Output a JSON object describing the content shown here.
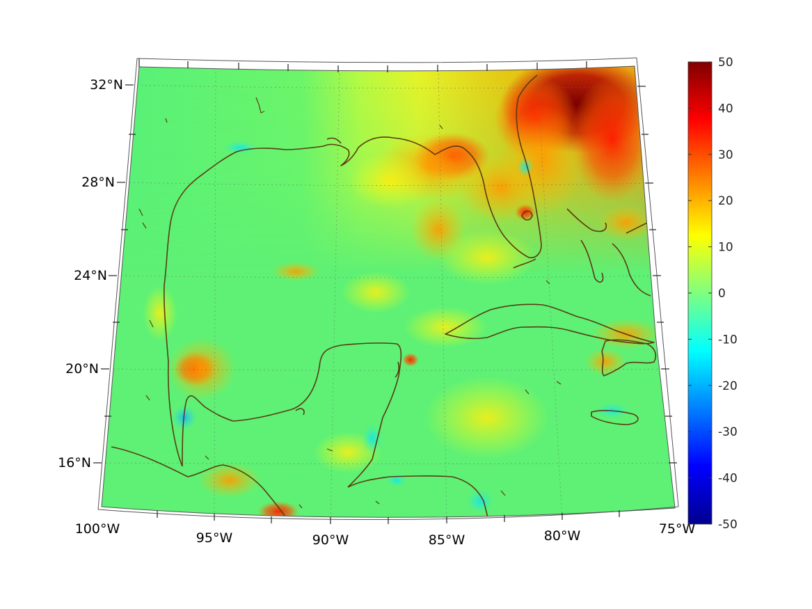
{
  "map": {
    "projection": "conic",
    "lon_range": [
      -100,
      -75
    ],
    "lat_range": [
      14,
      33
    ],
    "grid": true,
    "coastline_color": "#5a3a12",
    "lon_ticks": [
      {
        "lon": -100,
        "label": "100°W"
      },
      {
        "lon": -95,
        "label": "95°W"
      },
      {
        "lon": -90,
        "label": "90°W"
      },
      {
        "lon": -85,
        "label": "85°W"
      },
      {
        "lon": -80,
        "label": "80°W"
      },
      {
        "lon": -75,
        "label": "75°W"
      }
    ],
    "lat_ticks": [
      {
        "lat": 32,
        "label": "32°N"
      },
      {
        "lat": 28,
        "label": "28°N"
      },
      {
        "lat": 24,
        "label": "24°N"
      },
      {
        "lat": 20,
        "label": "20°N"
      },
      {
        "lat": 16,
        "label": "16°N"
      }
    ]
  },
  "colorbar": {
    "colormap": "jet",
    "range": [
      -50,
      50
    ],
    "ticks": [
      {
        "value": 50,
        "label": "50"
      },
      {
        "value": 40,
        "label": "40"
      },
      {
        "value": 30,
        "label": "30"
      },
      {
        "value": 20,
        "label": "20"
      },
      {
        "value": 10,
        "label": "10"
      },
      {
        "value": 0,
        "label": "0"
      },
      {
        "value": -10,
        "label": "-10"
      },
      {
        "value": -20,
        "label": "-20"
      },
      {
        "value": -30,
        "label": "-30"
      },
      {
        "value": -40,
        "label": "-40"
      },
      {
        "value": -50,
        "label": "-50"
      }
    ]
  }
}
